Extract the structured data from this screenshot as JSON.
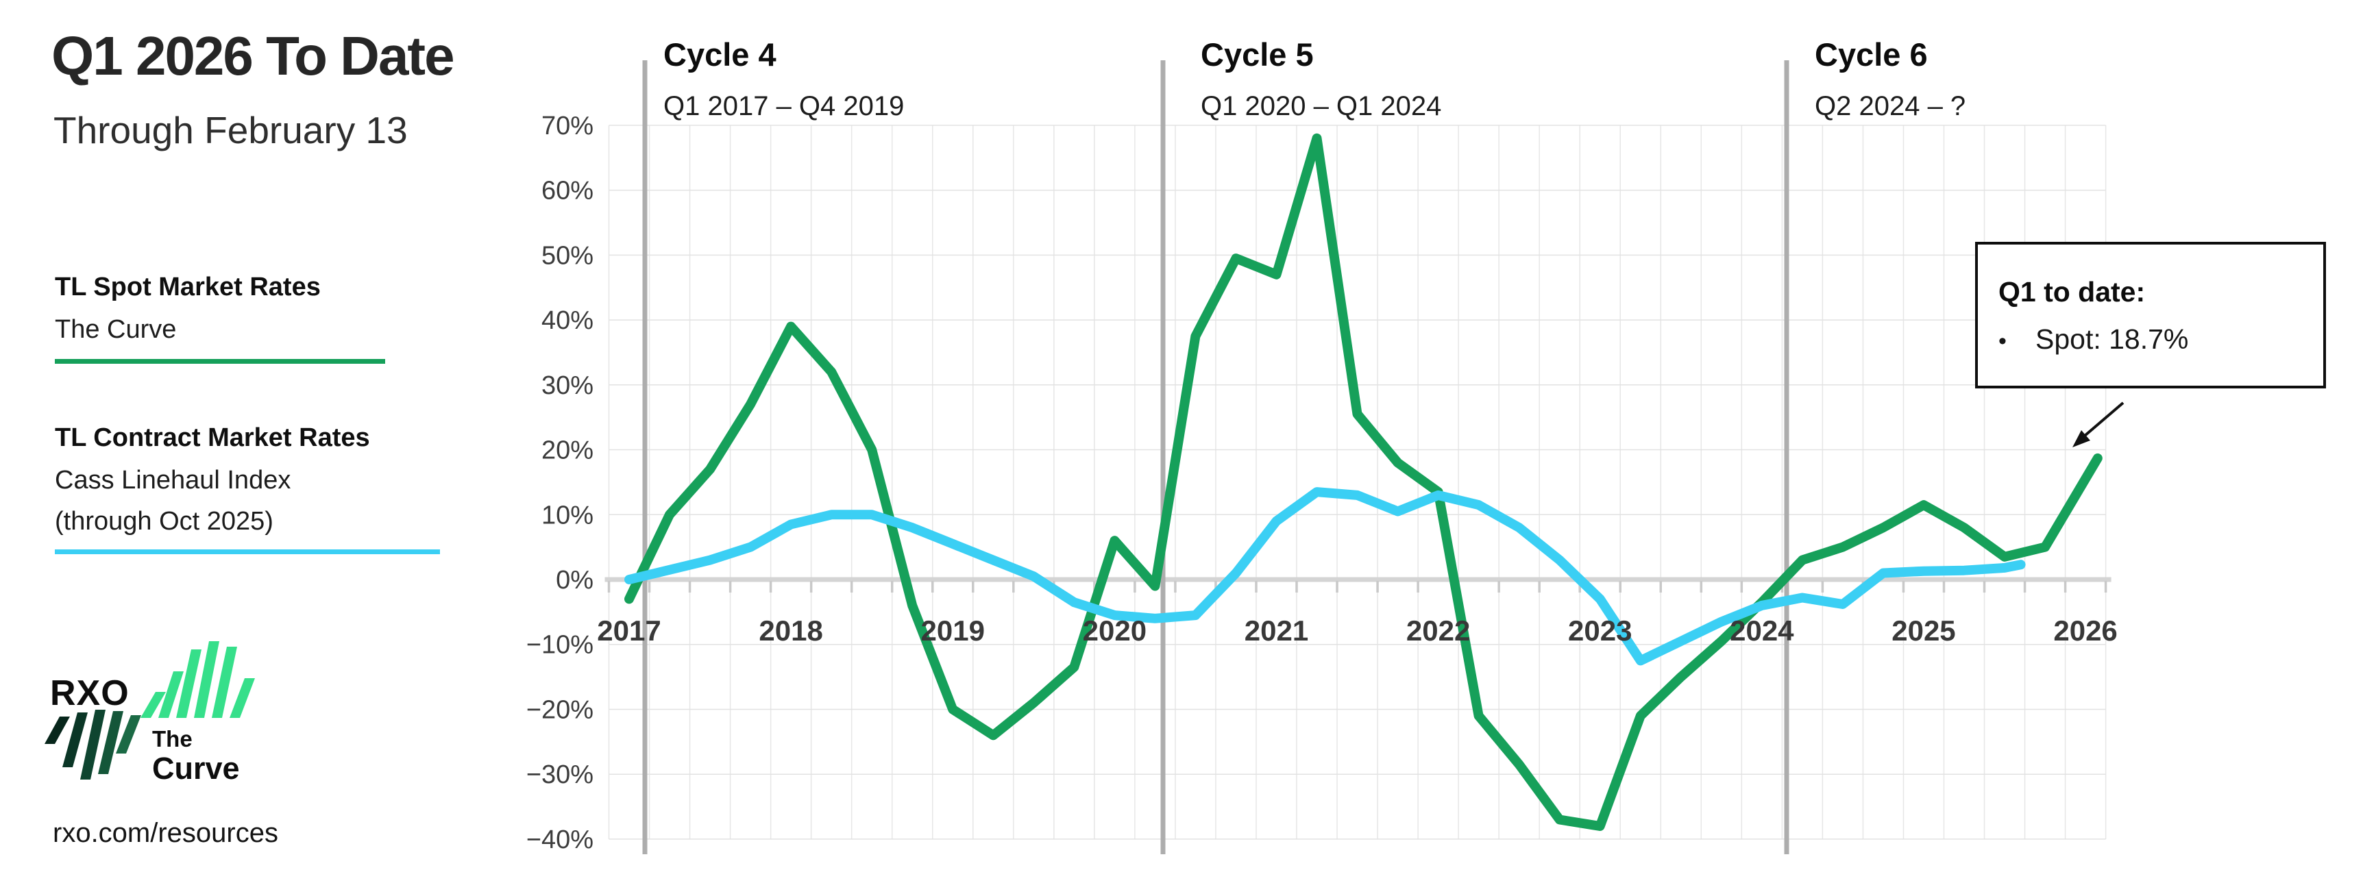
{
  "page": {
    "title": "Q1 2026 To Date",
    "subtitle": "Through February 13"
  },
  "legend": {
    "spot": {
      "title": "TL Spot Market Rates",
      "source": "The Curve",
      "color": "#16A05A"
    },
    "contract": {
      "title": "TL Contract Market Rates",
      "source": "Cass Linehaul Index",
      "source_note": "(through Oct 2025)",
      "color": "#3BCFF4"
    }
  },
  "logo": {
    "brand": "RXO",
    "product_top": "The",
    "product_bottom": "Curve",
    "bright_stripe_color": "#36DF8A",
    "dark_stripe_palette": [
      "#07261b",
      "#0a3626",
      "#0e4530",
      "#145639",
      "#1b6a45"
    ]
  },
  "footer": {
    "url": "rxo.com/resources"
  },
  "cycles": [
    {
      "title": "Cycle 4",
      "range": "Q1 2017 – Q4 2019"
    },
    {
      "title": "Cycle 5",
      "range": "Q1 2020 – Q1 2024"
    },
    {
      "title": "Cycle 6",
      "range": "Q2 2024 – ?"
    }
  ],
  "callout": {
    "title": "Q1 to date:",
    "bullet_text": "Spot: 18.7%",
    "bullet_glyph": "•"
  },
  "chart_data": {
    "type": "line",
    "title": "TL spot vs contract market rates, year-over-year % change by quarter",
    "x_year_labels": [
      "2017",
      "2018",
      "2019",
      "2020",
      "2021",
      "2022",
      "2023",
      "2024",
      "2025",
      "2026"
    ],
    "y_tick_values": [
      70,
      60,
      50,
      40,
      30,
      20,
      10,
      0,
      -10,
      -20,
      -30,
      -40
    ],
    "y_tick_suffix": "%",
    "ylim": [
      -40,
      70
    ],
    "grid": true,
    "legend_position": "left",
    "x_unit": "quarter",
    "quarters": [
      "Q1 2017",
      "Q2 2017",
      "Q3 2017",
      "Q4 2017",
      "Q1 2018",
      "Q2 2018",
      "Q3 2018",
      "Q4 2018",
      "Q1 2019",
      "Q2 2019",
      "Q3 2019",
      "Q4 2019",
      "Q1 2020",
      "Q2 2020",
      "Q3 2020",
      "Q4 2020",
      "Q1 2021",
      "Q2 2021",
      "Q3 2021",
      "Q4 2021",
      "Q1 2022",
      "Q2 2022",
      "Q3 2022",
      "Q4 2022",
      "Q1 2023",
      "Q2 2023",
      "Q3 2023",
      "Q4 2023",
      "Q1 2024",
      "Q2 2024",
      "Q3 2024",
      "Q4 2024",
      "Q1 2025",
      "Q2 2025",
      "Q3 2025",
      "Q4 2025"
    ],
    "series": [
      {
        "name": "TL Spot Market Rates (The Curve)",
        "color": "#16A05A",
        "values": [
          -3,
          10,
          17,
          27,
          39,
          32,
          20,
          -4,
          -20,
          -24,
          -19,
          -13.5,
          6,
          -1,
          37.5,
          49.5,
          47,
          68,
          25.5,
          18,
          13.5,
          -21,
          -28.5,
          -37,
          -38,
          -21,
          -15,
          -9.5,
          -3.5,
          3,
          5,
          8,
          11.5,
          8,
          3.5,
          5
        ],
        "end_point": {
          "x_quarter": 36.3,
          "value": 18.7,
          "label": "Q1 2026 to date: Spot 18.7%"
        }
      },
      {
        "name": "TL Contract Market Rates (Cass Linehaul Index)",
        "color": "#3BCFF4",
        "values": [
          0,
          1.5,
          3,
          5,
          8.5,
          10,
          10,
          8,
          5.5,
          3,
          0.5,
          -3.5,
          -5.5,
          -6,
          -5.5,
          1,
          9,
          13.5,
          13,
          10.5,
          13,
          11.5,
          8,
          3,
          -3,
          -12.5,
          -9.5,
          -6.5,
          -4,
          -2.8,
          -3.8,
          1,
          1.3,
          1.4,
          1.8
        ],
        "end_point": {
          "x_quarter": 34.4,
          "value": 2.3,
          "label": "Oct 2025: 2.3%"
        }
      }
    ],
    "annotations": [
      {
        "text": "Cycle 4  Q1 2017 – Q4 2019"
      },
      {
        "text": "Cycle 5  Q1 2020 – Q1 2024"
      },
      {
        "text": "Cycle 6  Q2 2024 – ?"
      },
      {
        "text": "Q1 to date: Spot: 18.7%"
      }
    ]
  }
}
